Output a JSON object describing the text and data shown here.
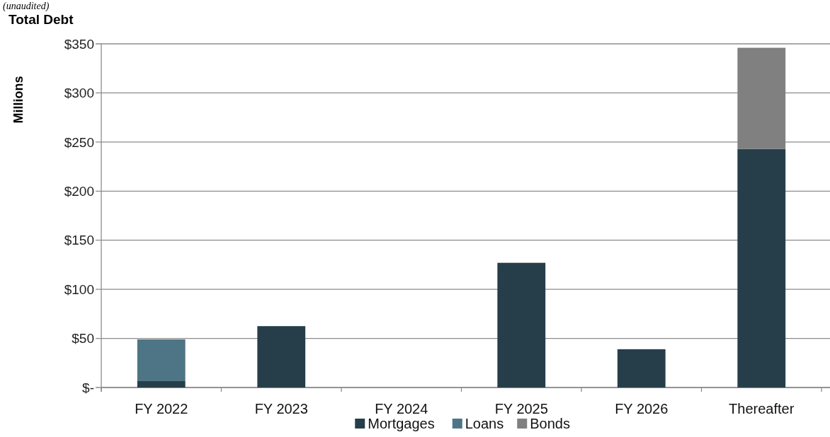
{
  "chart_data": {
    "type": "bar",
    "title": "Total Debt",
    "ylabel": "Millions",
    "annotations": [
      "(unaudited)"
    ],
    "categories": [
      "FY 2022",
      "FY 2023",
      "FY 2024",
      "FY 2025",
      "FY 2026",
      "Thereafter"
    ],
    "stacked": true,
    "series": [
      {
        "name": "Mortgages",
        "color": "#263e4a",
        "values": [
          6.5,
          62.5,
          0,
          127,
          39,
          243
        ]
      },
      {
        "name": "Loans",
        "color": "#4e7585",
        "values": [
          42.5,
          0,
          0,
          0,
          0,
          0
        ]
      },
      {
        "name": "Bonds",
        "color": "#808080",
        "values": [
          0,
          0,
          0,
          0,
          0,
          103
        ]
      }
    ],
    "ylim": [
      0,
      350
    ],
    "yticks": [
      {
        "value": 0,
        "label": "$-"
      },
      {
        "value": 50,
        "label": "$50"
      },
      {
        "value": 100,
        "label": "$100"
      },
      {
        "value": 150,
        "label": "$150"
      },
      {
        "value": 200,
        "label": "$200"
      },
      {
        "value": 250,
        "label": "$250"
      },
      {
        "value": 300,
        "label": "$300"
      },
      {
        "value": 350,
        "label": "$350"
      }
    ],
    "grid": "y",
    "legend": "bottom"
  }
}
